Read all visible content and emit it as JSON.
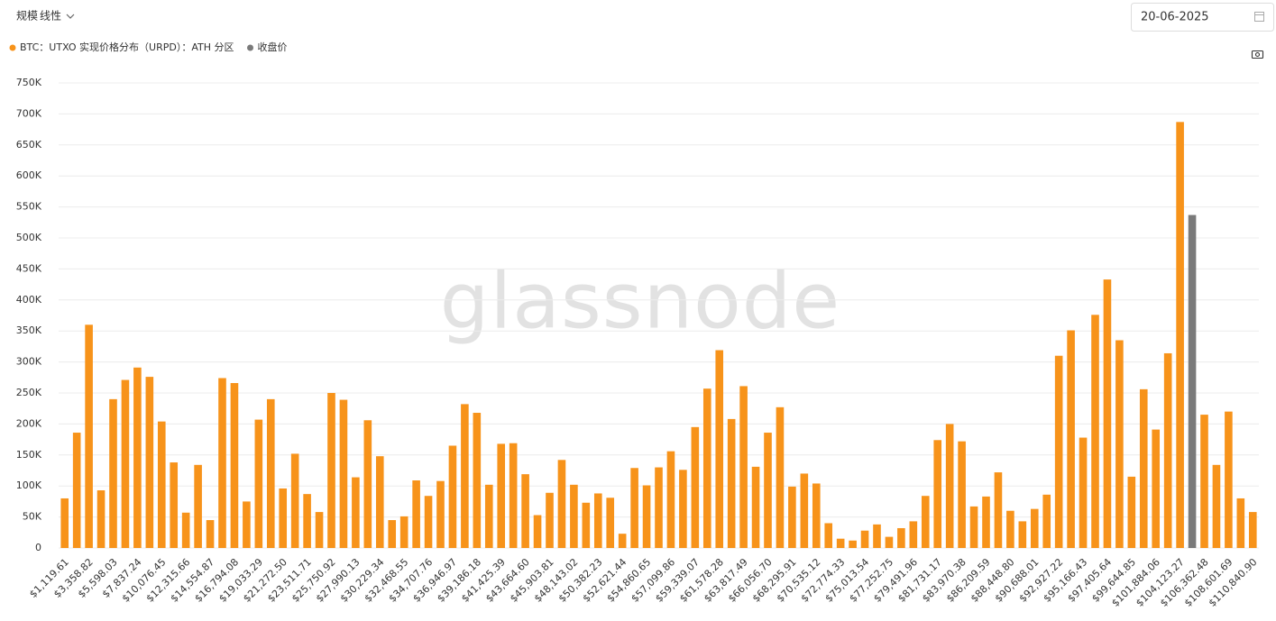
{
  "ui": {
    "scale": "规模",
    "scale_mode": "线性",
    "date": "20-06-2025",
    "watermark": "glassnode"
  },
  "chart_data": {
    "type": "bar",
    "categories": [
      "$1,119.61",
      null,
      "$3,358.82",
      null,
      "$5,598.03",
      null,
      "$7,837.24",
      null,
      "$10,076.45",
      null,
      "$12,315.66",
      null,
      "$14,554.87",
      null,
      "$16,794.08",
      null,
      "$19,033.29",
      null,
      "$21,272.50",
      null,
      "$23,511.71",
      null,
      "$25,750.92",
      null,
      "$27,990.13",
      null,
      "$30,229.34",
      null,
      "$32,468.55",
      null,
      "$34,707.76",
      null,
      "$36,946.97",
      null,
      "$39,186.18",
      null,
      "$41,425.39",
      null,
      "$43,664.60",
      null,
      "$45,903.81",
      null,
      "$48,143.02",
      null,
      "$50,382.23",
      null,
      "$52,621.44",
      null,
      "$54,860.65",
      null,
      "$57,099.86",
      null,
      "$59,339.07",
      null,
      "$61,578.28",
      null,
      "$63,817.49",
      null,
      "$66,056.70",
      null,
      "$68,295.91",
      null,
      "$70,535.12",
      null,
      "$72,774.33",
      null,
      "$75,013.54",
      null,
      "$77,252.75",
      null,
      "$79,491.96",
      null,
      "$81,731.17",
      null,
      "$83,970.38",
      null,
      "$86,209.59",
      null,
      "$88,448.80",
      null,
      "$90,688.01",
      null,
      "$92,927.22",
      null,
      "$95,166.43",
      null,
      "$97,405.64",
      null,
      "$99,644.85",
      null,
      "$101,884.06",
      null,
      "$104,123.27",
      null,
      "$106,362.48",
      null,
      "$108,601.69",
      null,
      "$110,840.90"
    ],
    "series": [
      {
        "name": "BTC：UTXO 实现价格分布（URPD）：ATH 分区",
        "color": "#f7931a",
        "values": [
          80000,
          186000,
          360000,
          93000,
          240000,
          271000,
          291000,
          276000,
          204000,
          138000,
          57000,
          134000,
          45000,
          274000,
          266000,
          75000,
          207000,
          240000,
          96000,
          152000,
          87000,
          58000,
          250000,
          239000,
          114000,
          206000,
          148000,
          45000,
          51000,
          109000,
          84000,
          108000,
          165000,
          232000,
          218000,
          102000,
          168000,
          169000,
          119000,
          53000,
          89000,
          142000,
          102000,
          73000,
          88000,
          81000,
          23000,
          129000,
          101000,
          130000,
          156000,
          126000,
          195000,
          257000,
          319000,
          208000,
          261000,
          131000,
          186000,
          227000,
          99000,
          120000,
          104000,
          40000,
          15000,
          12000,
          28000,
          38000,
          18000,
          32000,
          43000,
          84000,
          174000,
          200000,
          172000,
          67000,
          83000,
          122000,
          60000,
          43000,
          63000,
          86000,
          310000,
          351000,
          178000,
          376000,
          433000,
          335000,
          115000,
          256000,
          191000,
          314000,
          687000,
          null,
          215000,
          134000,
          220000,
          80000,
          58000
        ]
      },
      {
        "name": "收盘价",
        "color": "#7a7a7a",
        "values": [
          null,
          null,
          null,
          null,
          null,
          null,
          null,
          null,
          null,
          null,
          null,
          null,
          null,
          null,
          null,
          null,
          null,
          null,
          null,
          null,
          null,
          null,
          null,
          null,
          null,
          null,
          null,
          null,
          null,
          null,
          null,
          null,
          null,
          null,
          null,
          null,
          null,
          null,
          null,
          null,
          null,
          null,
          null,
          null,
          null,
          null,
          null,
          null,
          null,
          null,
          null,
          null,
          null,
          null,
          null,
          null,
          null,
          null,
          null,
          null,
          null,
          null,
          null,
          null,
          null,
          null,
          null,
          null,
          null,
          null,
          null,
          null,
          null,
          null,
          null,
          null,
          null,
          null,
          null,
          null,
          null,
          null,
          null,
          null,
          null,
          null,
          null,
          null,
          null,
          null,
          null,
          null,
          null,
          537000,
          null,
          null,
          null,
          null,
          null
        ]
      }
    ],
    "ylim": [
      0,
      750000
    ],
    "yticks": [
      0,
      {
        "value": 50000,
        "label": "50K"
      },
      {
        "value": 100000,
        "label": "100K"
      },
      {
        "value": 150000,
        "label": "150K"
      },
      {
        "value": 200000,
        "label": "200K"
      },
      {
        "value": 250000,
        "label": "250K"
      },
      {
        "value": 300000,
        "label": "300K"
      },
      {
        "value": 350000,
        "label": "350K"
      },
      {
        "value": 400000,
        "label": "400K"
      },
      {
        "value": 450000,
        "label": "450K"
      },
      {
        "value": 500000,
        "label": "500K"
      },
      {
        "value": 550000,
        "label": "550K"
      },
      {
        "value": 600000,
        "label": "600K"
      },
      {
        "value": 650000,
        "label": "650K"
      },
      {
        "value": 700000,
        "label": "700K"
      },
      {
        "value": 750000,
        "label": "750K"
      }
    ],
    "grid": true
  }
}
